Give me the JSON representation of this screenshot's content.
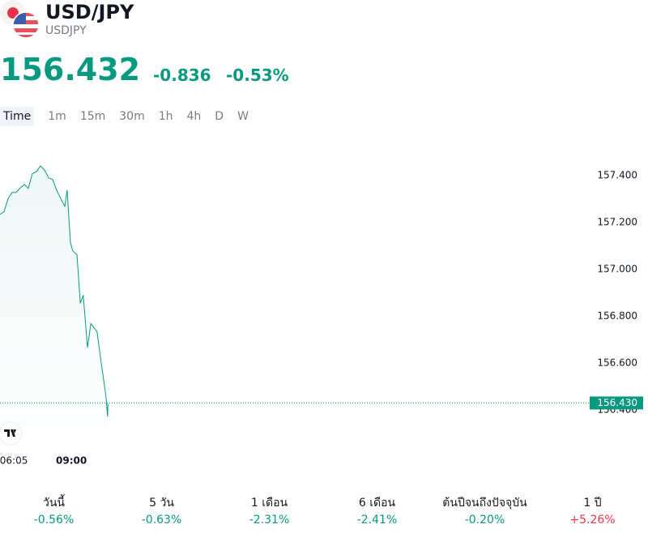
{
  "header": {
    "symbol": "USD/JPY",
    "ticker": "USDJPY",
    "price": "156.432",
    "change": "-0.836",
    "change_percent": "-0.53%"
  },
  "tabs": [
    "Time",
    "1m",
    "15m",
    "30m",
    "1h",
    "4h",
    "D",
    "W"
  ],
  "active_tab": 0,
  "chart_data": {
    "type": "line",
    "color": "#089981",
    "x": [
      323,
      335,
      348,
      360,
      372,
      385,
      397,
      409,
      421,
      434,
      446,
      458,
      471,
      483,
      495,
      507,
      520,
      527,
      537,
      544,
      557,
      567,
      576,
      589,
      599,
      608,
      618,
      631,
      638,
      645,
      650,
      651
    ],
    "values": [
      157.234,
      157.245,
      157.303,
      157.328,
      157.328,
      157.348,
      157.362,
      157.345,
      157.407,
      157.417,
      157.441,
      157.424,
      157.39,
      157.383,
      157.338,
      157.303,
      157.269,
      157.338,
      157.114,
      157.079,
      157.062,
      156.855,
      156.89,
      156.666,
      156.769,
      156.752,
      156.734,
      156.597,
      156.528,
      156.459,
      156.372,
      156.428
    ],
    "xlim": [
      323,
      2115
    ],
    "xticks": [
      {
        "value": 365,
        "label": "06:05"
      },
      {
        "value": 540,
        "label": "09:00"
      }
    ],
    "ylim": [
      156.2,
      157.6
    ],
    "yticks": [
      {
        "value": 156.4,
        "label": "156.400"
      },
      {
        "value": 156.6,
        "label": "156.600"
      },
      {
        "value": 156.8,
        "label": "156.800"
      },
      {
        "value": 157.0,
        "label": "157.000"
      },
      {
        "value": 157.2,
        "label": "157.200"
      },
      {
        "value": 157.4,
        "label": "157.400"
      }
    ],
    "last_price": {
      "value": 156.43,
      "label": "156.430"
    }
  },
  "performance": [
    {
      "period": "วันนี้",
      "change": "-0.56%"
    },
    {
      "period": "5 วัน",
      "change": "-0.63%"
    },
    {
      "period": "1 เดือน",
      "change": "-2.31%"
    },
    {
      "period": "6 เดือน",
      "change": "-2.41%"
    },
    {
      "period": "ต้นปีจนถึงปัจจุบัน",
      "change": "-0.20%"
    },
    {
      "period": "1 ปี",
      "change": "+5.26%"
    }
  ]
}
